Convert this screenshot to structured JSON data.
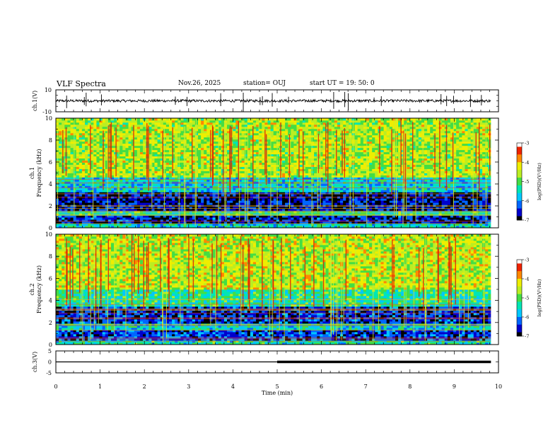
{
  "header": {
    "title": "VLF Spectra",
    "date": "Nov.26, 2025",
    "station": "station= OUJ",
    "start": "start  UT =   19: 50: 0"
  },
  "colormap": {
    "stops": [
      "#000000",
      "#0000cc",
      "#0066ff",
      "#00c8ff",
      "#00e6b4",
      "#44dd44",
      "#bbee22",
      "#eeee00",
      "#ff8800",
      "#ee2200",
      "#ffffff"
    ]
  },
  "chart_data": [
    {
      "type": "line",
      "name": "ch1-waveform",
      "ylabel": "ch.1(V)",
      "ylim": [
        -10,
        10
      ],
      "yticks": [
        "10",
        "-10"
      ],
      "x_range_min": [
        0,
        9.83
      ],
      "baseline_v": 0,
      "typical_amplitude_v": 1.2
    },
    {
      "type": "heatmap",
      "name": "ch1-spectrogram",
      "ylabel": "ch.1\nFrequency  (kHz)",
      "ylabel_line1": "ch.1",
      "ylabel_line2": "Frequency  (kHz)",
      "ylim_khz": [
        0,
        10
      ],
      "yticks": [
        "0",
        "2",
        "4",
        "6",
        "8",
        "10"
      ],
      "x_range_min": [
        0,
        9.83
      ],
      "colorbar": {
        "label": "log(PSD)(V²/Hz)",
        "range": [
          -7,
          -3
        ],
        "ticks": [
          "-3",
          "-4",
          "-5",
          "-6",
          "-7"
        ]
      },
      "bands_khz": [
        {
          "from": 0,
          "to": 0.3,
          "level": -5.5
        },
        {
          "from": 0.3,
          "to": 1.2,
          "level": -6.6
        },
        {
          "from": 1.2,
          "to": 1.6,
          "level": -5.3
        },
        {
          "from": 1.6,
          "to": 3.2,
          "level": -6.7
        },
        {
          "from": 3.2,
          "to": 4.6,
          "level": -5.6
        },
        {
          "from": 4.6,
          "to": 10,
          "level": -4.6
        }
      ]
    },
    {
      "type": "heatmap",
      "name": "ch2-spectrogram",
      "ylabel": "ch.2\nFrequency  (kHz)",
      "ylabel_line1": "ch.2",
      "ylabel_line2": "Frequency  (kHz)",
      "ylim_khz": [
        0,
        10
      ],
      "yticks": [
        "0",
        "2",
        "4",
        "6",
        "8",
        "10"
      ],
      "x_range_min": [
        0,
        9.83
      ],
      "colorbar": {
        "label": "log(PSD)(V²/Hz)",
        "range": [
          -7,
          -3
        ],
        "ticks": [
          "-3",
          "-4",
          "-5",
          "-6",
          "-7"
        ]
      },
      "bands_khz": [
        {
          "from": 0,
          "to": 0.4,
          "level": -5.4
        },
        {
          "from": 0.4,
          "to": 1.4,
          "level": -6.4
        },
        {
          "from": 1.4,
          "to": 2.0,
          "level": -5.6
        },
        {
          "from": 2.0,
          "to": 3.4,
          "level": -6.5
        },
        {
          "from": 3.4,
          "to": 5.0,
          "level": -5.3
        },
        {
          "from": 5.0,
          "to": 10,
          "level": -4.5
        }
      ]
    },
    {
      "type": "line",
      "name": "ch3-trace",
      "ylabel": "ch.3(V)",
      "ylim": [
        -5,
        5
      ],
      "yticks": [
        "5",
        "0",
        "-5"
      ],
      "segments": [
        {
          "x_from": 0,
          "x_to": 5.0,
          "y": 0,
          "weight": "thin"
        },
        {
          "x_from": 5.0,
          "x_to": 9.83,
          "y": 0,
          "weight": "thick"
        }
      ]
    }
  ],
  "xaxis": {
    "label": "Time  (min)",
    "range": [
      0,
      10
    ],
    "ticks": [
      "0",
      "1",
      "2",
      "3",
      "4",
      "5",
      "6",
      "7",
      "8",
      "9",
      "10"
    ]
  }
}
